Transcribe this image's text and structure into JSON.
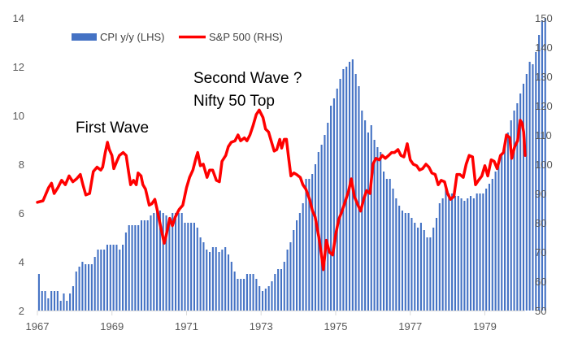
{
  "chart_data": {
    "type": "bar+line",
    "legend": {
      "position": "top-left",
      "items": [
        "CPI y/y (LHS)",
        "S&P 500 (RHS)"
      ]
    },
    "grid": false,
    "x_ticks": [
      "1967",
      "1969",
      "1971",
      "1973",
      "1975",
      "1977",
      "1979"
    ],
    "x_range": [
      1967.0,
      1980.08
    ],
    "y_left": {
      "label": "",
      "lim": [
        2,
        14
      ],
      "ticks": [
        "2",
        "4",
        "6",
        "8",
        "10",
        "12",
        "14"
      ]
    },
    "y_right": {
      "label": "",
      "lim": [
        50,
        150
      ],
      "ticks": [
        "50",
        "60",
        "70",
        "80",
        "90",
        "100",
        "110",
        "120",
        "130",
        "140",
        "150"
      ]
    },
    "series": [
      {
        "name": "CPI y/y (LHS)",
        "kind": "bar",
        "axis": "left",
        "color": "#4472C4",
        "x_start": 1967.0,
        "step": 0.0833,
        "values": [
          3.5,
          2.8,
          2.8,
          2.5,
          2.8,
          2.8,
          2.8,
          2.4,
          2.7,
          2.4,
          2.7,
          3.0,
          3.6,
          3.8,
          4.0,
          3.9,
          3.9,
          3.9,
          4.2,
          4.5,
          4.5,
          4.5,
          4.7,
          4.7,
          4.7,
          4.7,
          4.5,
          4.7,
          5.2,
          5.5,
          5.5,
          5.5,
          5.5,
          5.7,
          5.7,
          5.7,
          5.9,
          6.0,
          6.2,
          6.1,
          6.0,
          5.9,
          5.6,
          6.0,
          6.0,
          6.0,
          6.0,
          5.6,
          5.6,
          5.6,
          5.6,
          5.4,
          5.0,
          4.8,
          4.5,
          4.4,
          4.6,
          4.6,
          4.4,
          4.5,
          4.6,
          4.3,
          4.0,
          3.6,
          3.3,
          3.3,
          3.3,
          3.5,
          3.5,
          3.5,
          3.3,
          3.0,
          2.8,
          2.9,
          3.0,
          3.2,
          3.5,
          3.7,
          3.7,
          4.0,
          4.5,
          4.8,
          5.3,
          5.7,
          6.0,
          6.4,
          7.4,
          7.4,
          7.6,
          8.0,
          8.5,
          8.8,
          9.2,
          9.7,
          10.4,
          10.7,
          11.1,
          11.5,
          11.9,
          12.0,
          12.2,
          12.3,
          11.7,
          11.2,
          10.2,
          9.8,
          9.3,
          9.6,
          9.0,
          8.7,
          8.5,
          7.7,
          7.4,
          7.4,
          7.0,
          6.6,
          6.3,
          6.1,
          6.0,
          6.0,
          5.8,
          5.6,
          5.4,
          5.6,
          5.3,
          5.0,
          5.0,
          5.4,
          5.8,
          6.4,
          6.6,
          7.0,
          6.8,
          6.8,
          6.7,
          6.7,
          6.6,
          6.5,
          6.6,
          6.7,
          6.6,
          6.8,
          6.8,
          6.8,
          7.0,
          7.2,
          7.4,
          7.7,
          8.0,
          8.4,
          8.8,
          9.3,
          9.8,
          10.2,
          10.5,
          10.9,
          11.3,
          11.7,
          12.2,
          12.1,
          12.6,
          13.3,
          13.9,
          14.0
        ]
      },
      {
        "name": "S&P 500 (RHS)",
        "kind": "line",
        "axis": "right",
        "color": "#FF0000",
        "points": [
          [
            1967.0,
            87
          ],
          [
            1967.15,
            87.5
          ],
          [
            1967.3,
            92
          ],
          [
            1967.38,
            93.5
          ],
          [
            1967.45,
            90
          ],
          [
            1967.55,
            92
          ],
          [
            1967.65,
            94.5
          ],
          [
            1967.75,
            93
          ],
          [
            1967.85,
            96
          ],
          [
            1967.95,
            94
          ],
          [
            1968.05,
            95
          ],
          [
            1968.15,
            96.5
          ],
          [
            1968.22,
            93
          ],
          [
            1968.3,
            89.5
          ],
          [
            1968.4,
            90
          ],
          [
            1968.5,
            97.5
          ],
          [
            1968.6,
            99
          ],
          [
            1968.7,
            98
          ],
          [
            1968.75,
            99
          ],
          [
            1968.82,
            104
          ],
          [
            1968.88,
            107.5
          ],
          [
            1968.93,
            105
          ],
          [
            1969.0,
            103
          ],
          [
            1969.05,
            98.5
          ],
          [
            1969.13,
            101
          ],
          [
            1969.2,
            103
          ],
          [
            1969.3,
            104
          ],
          [
            1969.38,
            103
          ],
          [
            1969.45,
            97
          ],
          [
            1969.5,
            93
          ],
          [
            1969.58,
            94.5
          ],
          [
            1969.65,
            93
          ],
          [
            1969.7,
            97
          ],
          [
            1969.78,
            96
          ],
          [
            1969.83,
            93
          ],
          [
            1969.9,
            91.5
          ],
          [
            1970.0,
            86
          ],
          [
            1970.07,
            86.5
          ],
          [
            1970.15,
            88
          ],
          [
            1970.22,
            84
          ],
          [
            1970.3,
            79
          ],
          [
            1970.4,
            73
          ],
          [
            1970.45,
            75.5
          ],
          [
            1970.55,
            81.5
          ],
          [
            1970.62,
            79
          ],
          [
            1970.7,
            82
          ],
          [
            1970.8,
            84.5
          ],
          [
            1970.9,
            86
          ],
          [
            1971.0,
            92
          ],
          [
            1971.08,
            95.5
          ],
          [
            1971.17,
            98
          ],
          [
            1971.25,
            102
          ],
          [
            1971.3,
            104
          ],
          [
            1971.37,
            99.5
          ],
          [
            1971.45,
            100
          ],
          [
            1971.55,
            95.5
          ],
          [
            1971.62,
            98
          ],
          [
            1971.7,
            98
          ],
          [
            1971.8,
            94.5
          ],
          [
            1971.88,
            94
          ],
          [
            1971.95,
            101
          ],
          [
            1972.05,
            103
          ],
          [
            1972.12,
            106
          ],
          [
            1972.2,
            107.5
          ],
          [
            1972.3,
            108
          ],
          [
            1972.38,
            110
          ],
          [
            1972.45,
            108
          ],
          [
            1972.55,
            109
          ],
          [
            1972.62,
            108
          ],
          [
            1972.7,
            110
          ],
          [
            1972.78,
            113
          ],
          [
            1972.87,
            117
          ],
          [
            1972.95,
            118.5
          ],
          [
            1973.05,
            116
          ],
          [
            1973.12,
            112
          ],
          [
            1973.2,
            111
          ],
          [
            1973.28,
            107.5
          ],
          [
            1973.35,
            104.5
          ],
          [
            1973.42,
            105
          ],
          [
            1973.5,
            108.5
          ],
          [
            1973.55,
            105.5
          ],
          [
            1973.62,
            108.5
          ],
          [
            1973.68,
            108.5
          ],
          [
            1973.73,
            103
          ],
          [
            1973.8,
            96
          ],
          [
            1973.88,
            97
          ],
          [
            1973.95,
            96.5
          ],
          [
            1974.05,
            95.5
          ],
          [
            1974.12,
            93
          ],
          [
            1974.2,
            91.5
          ],
          [
            1974.3,
            88
          ],
          [
            1974.38,
            84
          ],
          [
            1974.45,
            82
          ],
          [
            1974.55,
            75
          ],
          [
            1974.62,
            69
          ],
          [
            1974.67,
            64
          ],
          [
            1974.75,
            74
          ],
          [
            1974.83,
            70
          ],
          [
            1974.92,
            69
          ],
          [
            1975.0,
            76
          ],
          [
            1975.08,
            81
          ],
          [
            1975.17,
            84
          ],
          [
            1975.25,
            87
          ],
          [
            1975.35,
            91
          ],
          [
            1975.42,
            95
          ],
          [
            1975.5,
            89
          ],
          [
            1975.58,
            86.5
          ],
          [
            1975.67,
            84
          ],
          [
            1975.75,
            88
          ],
          [
            1975.83,
            91
          ],
          [
            1975.92,
            90
          ],
          [
            1976.0,
            100
          ],
          [
            1976.08,
            102
          ],
          [
            1976.17,
            101.5
          ],
          [
            1976.25,
            103
          ],
          [
            1976.33,
            102
          ],
          [
            1976.42,
            103
          ],
          [
            1976.5,
            104
          ],
          [
            1976.58,
            104
          ],
          [
            1976.67,
            105
          ],
          [
            1976.75,
            103
          ],
          [
            1976.83,
            102.5
          ],
          [
            1976.92,
            107
          ],
          [
            1977.0,
            101.5
          ],
          [
            1977.08,
            100
          ],
          [
            1977.17,
            99.5
          ],
          [
            1977.25,
            98
          ],
          [
            1977.33,
            98.5
          ],
          [
            1977.42,
            100
          ],
          [
            1977.5,
            99
          ],
          [
            1977.58,
            97
          ],
          [
            1977.67,
            96.5
          ],
          [
            1977.75,
            93
          ],
          [
            1977.83,
            94.5
          ],
          [
            1977.92,
            94
          ],
          [
            1978.0,
            90
          ],
          [
            1978.08,
            88
          ],
          [
            1978.17,
            89
          ],
          [
            1978.25,
            96.5
          ],
          [
            1978.33,
            96.5
          ],
          [
            1978.42,
            95.5
          ],
          [
            1978.5,
            100
          ],
          [
            1978.58,
            103
          ],
          [
            1978.67,
            102.5
          ],
          [
            1978.75,
            93
          ],
          [
            1978.83,
            94.5
          ],
          [
            1978.92,
            96
          ],
          [
            1979.0,
            99.5
          ],
          [
            1979.08,
            96
          ],
          [
            1979.17,
            101.5
          ],
          [
            1979.25,
            101
          ],
          [
            1979.33,
            98.5
          ],
          [
            1979.42,
            103
          ],
          [
            1979.5,
            104
          ],
          [
            1979.58,
            110
          ],
          [
            1979.67,
            109
          ],
          [
            1979.72,
            102
          ],
          [
            1979.8,
            106
          ],
          [
            1979.88,
            108
          ],
          [
            1979.95,
            115
          ],
          [
            1980.0,
            114
          ],
          [
            1980.04,
            111
          ],
          [
            1980.08,
            103
          ]
        ]
      }
    ],
    "annotations": [
      "First Wave",
      "Second Wave ?",
      "Nifty 50 Top"
    ]
  }
}
